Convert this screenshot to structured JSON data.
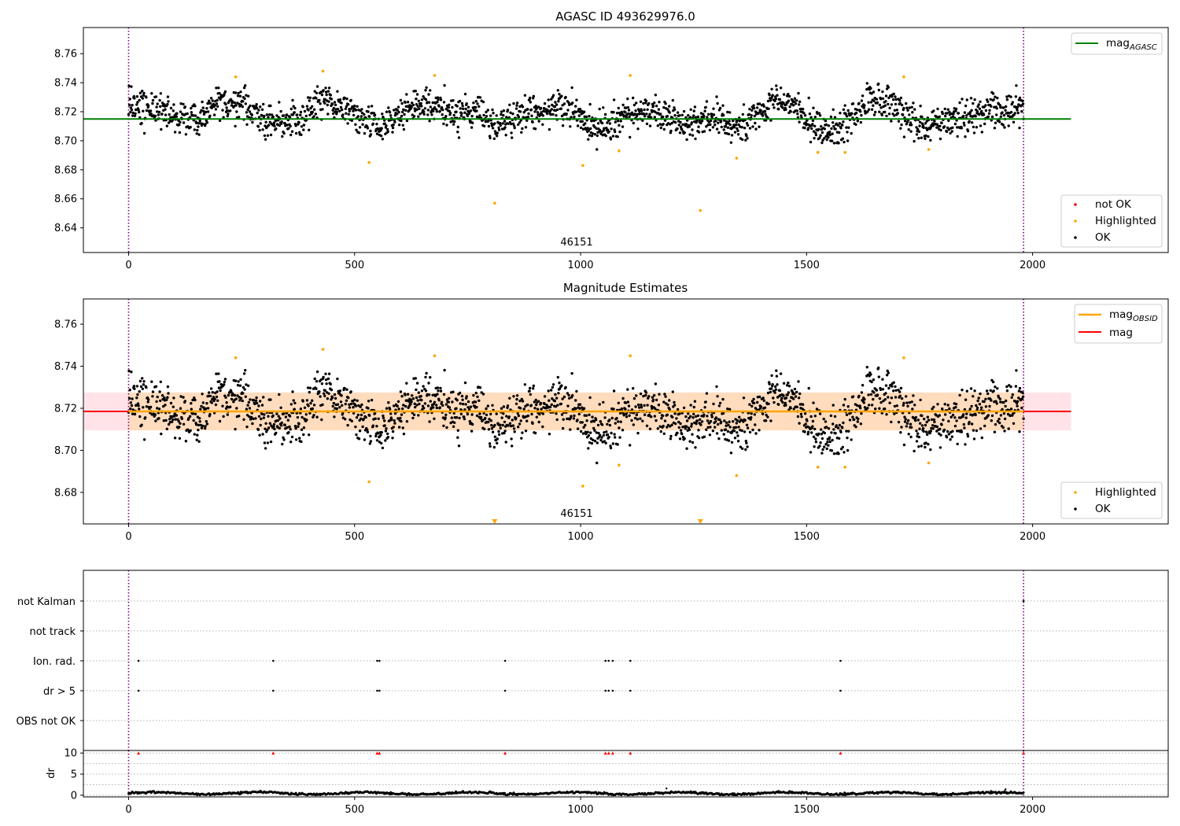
{
  "chart_data": [
    {
      "type": "scatter",
      "title": "AGASC ID 493629976.0",
      "obsid_annotation": "46151",
      "xlim": [
        -100,
        2300
      ],
      "ylim": [
        8.623,
        8.778
      ],
      "x_ticks": [
        0,
        500,
        1000,
        1500,
        2000
      ],
      "y_ticks": [
        8.64,
        8.66,
        8.68,
        8.7,
        8.72,
        8.74,
        8.76
      ],
      "obs_boundaries": [
        0,
        1980
      ],
      "reference_lines": [
        {
          "name": "mag_AGASC",
          "y": 8.715,
          "x_start": -100,
          "x_end": 2085,
          "color": "#008000"
        }
      ],
      "legend_upper": [
        {
          "label": "mag",
          "subscript": "AGASC",
          "color": "#008000",
          "kind": "line"
        }
      ],
      "legend_lower": [
        {
          "label": "not OK",
          "color": "#ff0000",
          "kind": "point"
        },
        {
          "label": "Highlighted",
          "color": "#ffa500",
          "kind": "point"
        },
        {
          "label": "OK",
          "color": "#000000",
          "kind": "point"
        }
      ],
      "series": [
        {
          "name": "OK",
          "color": "#000000",
          "points": "≈1980 samples, t=0..1980, mag ≈ 8.695–8.742, mean ≈ 8.718"
        },
        {
          "name": "Highlighted",
          "color": "#ffa500",
          "points": [
            [
              237,
              8.744
            ],
            [
              430,
              8.748
            ],
            [
              532,
              8.685
            ],
            [
              677,
              8.745
            ],
            [
              810,
              8.657
            ],
            [
              1005,
              8.683
            ],
            [
              1085,
              8.693
            ],
            [
              1110,
              8.745
            ],
            [
              1265,
              8.652
            ],
            [
              1345,
              8.688
            ],
            [
              1525,
              8.692
            ],
            [
              1585,
              8.692
            ],
            [
              1715,
              8.744
            ],
            [
              1770,
              8.694
            ]
          ]
        }
      ]
    },
    {
      "type": "scatter",
      "title": "Magnitude Estimates",
      "obsid_annotation": "46151",
      "xlim": [
        -100,
        2300
      ],
      "ylim": [
        8.665,
        8.772
      ],
      "x_ticks": [
        0,
        500,
        1000,
        1500,
        2000
      ],
      "y_ticks": [
        8.68,
        8.7,
        8.72,
        8.74,
        8.76
      ],
      "obs_boundaries": [
        0,
        1980
      ],
      "reference_lines": [
        {
          "name": "mag",
          "y": 8.7185,
          "x_start": -100,
          "x_end": 2085,
          "color": "#ff0000"
        },
        {
          "name": "mag_OBSID",
          "y": 8.7185,
          "x_start": 0,
          "x_end": 1980,
          "color": "#ffa500"
        }
      ],
      "bands": [
        {
          "name": "mag band",
          "y_low": 8.7095,
          "y_high": 8.7275,
          "x_start": -100,
          "x_end": 2085,
          "color": "#ffc0cb"
        },
        {
          "name": "mag_OBSID band",
          "y_low": 8.7095,
          "y_high": 8.7275,
          "x_start": 0,
          "x_end": 1980,
          "color": "#ffdab9"
        }
      ],
      "legend_upper": [
        {
          "label": "mag",
          "subscript": "OBSID",
          "color": "#ffa500",
          "kind": "line"
        },
        {
          "label": "mag",
          "subscript": "",
          "color": "#ff0000",
          "kind": "line"
        }
      ],
      "legend_lower": [
        {
          "label": "Highlighted",
          "color": "#ffa500",
          "kind": "point"
        },
        {
          "label": "OK",
          "color": "#000000",
          "kind": "point"
        }
      ],
      "out_of_range_markers": [
        810,
        1265
      ],
      "series": [
        {
          "name": "OK",
          "color": "#000000",
          "points": "same samples as panel 1"
        },
        {
          "name": "Highlighted",
          "color": "#ffa500",
          "points": "same samples as panel 1 (two below axis shown as triangles)"
        }
      ]
    },
    {
      "type": "scatter",
      "title": "",
      "xlim": [
        -100,
        2300
      ],
      "categories": [
        "not Kalman",
        "not track",
        "Ion. rad.",
        "dr > 5",
        "OBS not OK"
      ],
      "obs_boundaries": [
        0,
        1980
      ],
      "flag_points": {
        "not Kalman": [
          1980
        ],
        "not track": [],
        "Ion. rad.": [
          22,
          320,
          550,
          555,
          833,
          1055,
          1062,
          1071,
          1110,
          1575
        ],
        "dr > 5": [
          22,
          320,
          550,
          555,
          833,
          1055,
          1062,
          1071,
          1110,
          1575
        ],
        "OBS not OK": []
      }
    },
    {
      "type": "scatter",
      "title": "",
      "ylabel": "dr",
      "xlim": [
        -100,
        2300
      ],
      "ylim": [
        -0.4,
        10.6
      ],
      "x_ticks": [
        0,
        500,
        1000,
        1500,
        2000
      ],
      "y_ticks": [
        0,
        5,
        10
      ],
      "obs_boundaries": [
        0,
        1980
      ],
      "clipped_points": [
        22,
        320,
        550,
        555,
        833,
        1055,
        1062,
        1071,
        1110,
        1575,
        1980
      ],
      "series": [
        {
          "name": "dr",
          "color": "#000000",
          "points": "≈1980 samples, dr ≈ 0.1–1.0 with outliers at t≈1190 (1.6) and t≈1940 (1.4)"
        }
      ]
    }
  ]
}
